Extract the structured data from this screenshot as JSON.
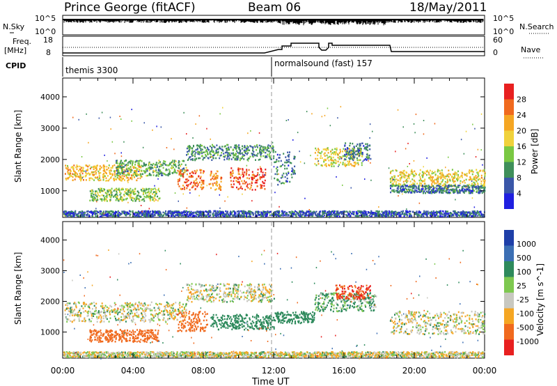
{
  "header": {
    "station": "Prince George (fitACF)",
    "beam": "Beam 06",
    "date": "18/May/2011"
  },
  "sky_panel": {
    "left_label": "N.Sky",
    "right_label": "N.Search",
    "ticks_left": [
      "10^5",
      "10^0"
    ],
    "ticks_right": [
      "10^5",
      "10^0"
    ]
  },
  "freq_panel": {
    "left_label_line1": "Freq.",
    "left_label_line2": "[MHz]",
    "ticks_left": [
      "18",
      "8"
    ],
    "right_label": "Nave",
    "ticks_right": [
      "60",
      "0"
    ]
  },
  "cpid_panel": {
    "label": "CPID",
    "mode1": "themis 3300",
    "mode2": "normalsound (fast) 157"
  },
  "colors": {
    "power_scale": [
      "#1f1fe0",
      "#3a57a8",
      "#3f8f5a",
      "#7ac843",
      "#f0d23c",
      "#f5a623",
      "#f06a1e",
      "#e82020"
    ],
    "velocity_scale": [
      "#1e3fa8",
      "#3c6fb4",
      "#2e8a5c",
      "#7ec850",
      "#c8c8c0",
      "#f5a623",
      "#f06a1e",
      "#e82020"
    ]
  },
  "chart_data": [
    {
      "type": "heatmap",
      "name": "power",
      "xlabel": "",
      "ylabel": "Slant Range [km]",
      "xlim": [
        0,
        24
      ],
      "ylim": [
        150,
        4600
      ],
      "y_ticks": [
        "1000",
        "2000",
        "3000",
        "4000"
      ],
      "colorbar_label": "Power [dB]",
      "colorbar_ticks": [
        "4",
        "8",
        "12",
        "16",
        "20",
        "24",
        "28"
      ],
      "bands": [
        {
          "t0": 0.1,
          "t1": 4.5,
          "r0": 1350,
          "r1": 1850,
          "value": 20
        },
        {
          "t0": 1.5,
          "t1": 5.5,
          "r0": 700,
          "r1": 1100,
          "value": 14
        },
        {
          "t0": 3.0,
          "t1": 7.0,
          "r0": 1500,
          "r1": 2000,
          "value": 12
        },
        {
          "t0": 6.5,
          "t1": 8.0,
          "r0": 1050,
          "r1": 1700,
          "value": 26
        },
        {
          "t0": 8.3,
          "t1": 9.0,
          "r0": 1050,
          "r1": 1650,
          "value": 24
        },
        {
          "t0": 9.5,
          "t1": 11.5,
          "r0": 1050,
          "r1": 1750,
          "value": 28
        },
        {
          "t0": 7.0,
          "t1": 12.0,
          "r0": 2000,
          "r1": 2500,
          "value": 10
        },
        {
          "t0": 12.0,
          "t1": 13.2,
          "r0": 1200,
          "r1": 2300,
          "value": 8
        },
        {
          "t0": 14.3,
          "t1": 17.0,
          "r0": 1800,
          "r1": 2400,
          "value": 18
        },
        {
          "t0": 16.0,
          "t1": 17.5,
          "r0": 2000,
          "r1": 2550,
          "value": 8
        },
        {
          "t0": 18.6,
          "t1": 24.0,
          "r0": 1150,
          "r1": 1700,
          "value": 18
        },
        {
          "t0": 18.6,
          "t1": 24.0,
          "r0": 950,
          "r1": 1200,
          "value": 8
        },
        {
          "t0": 0.0,
          "t1": 24.0,
          "r0": 200,
          "r1": 380,
          "value": 6
        }
      ]
    },
    {
      "type": "heatmap",
      "name": "velocity",
      "xlabel": "Time UT",
      "ylabel": "Slant Range [km]",
      "xlim": [
        0,
        24
      ],
      "ylim": [
        150,
        4600
      ],
      "x_ticks": [
        "00:00",
        "04:00",
        "08:00",
        "12:00",
        "16:00",
        "20:00",
        "00:00"
      ],
      "y_ticks": [
        "1000",
        "2000",
        "3000",
        "4000"
      ],
      "colorbar_label": "Velocity [m s^-1]",
      "colorbar_ticks": [
        "1000",
        "500",
        "100",
        "25",
        "-25",
        "-100",
        "-500",
        "-1000"
      ],
      "bands": [
        {
          "t0": 0.1,
          "t1": 7.0,
          "r0": 1350,
          "r1": 2000,
          "value": 0
        },
        {
          "t0": 1.5,
          "t1": 5.5,
          "r0": 700,
          "r1": 1100,
          "value": -300
        },
        {
          "t0": 6.5,
          "t1": 8.2,
          "r0": 1050,
          "r1": 1700,
          "value": -300
        },
        {
          "t0": 8.4,
          "t1": 12.0,
          "r0": 1100,
          "r1": 1600,
          "value": 200
        },
        {
          "t0": 7.0,
          "t1": 12.0,
          "r0": 2000,
          "r1": 2600,
          "value": 0
        },
        {
          "t0": 12.0,
          "t1": 14.3,
          "r0": 1300,
          "r1": 1700,
          "value": 200
        },
        {
          "t0": 14.3,
          "t1": 17.8,
          "r0": 1700,
          "r1": 2300,
          "value": 80
        },
        {
          "t0": 15.5,
          "t1": 17.5,
          "r0": 2100,
          "r1": 2550,
          "value": -500
        },
        {
          "t0": 18.6,
          "t1": 24.0,
          "r0": 950,
          "r1": 1700,
          "value": 0
        },
        {
          "t0": 0.0,
          "t1": 24.0,
          "r0": 200,
          "r1": 380,
          "value": 0
        }
      ]
    }
  ]
}
